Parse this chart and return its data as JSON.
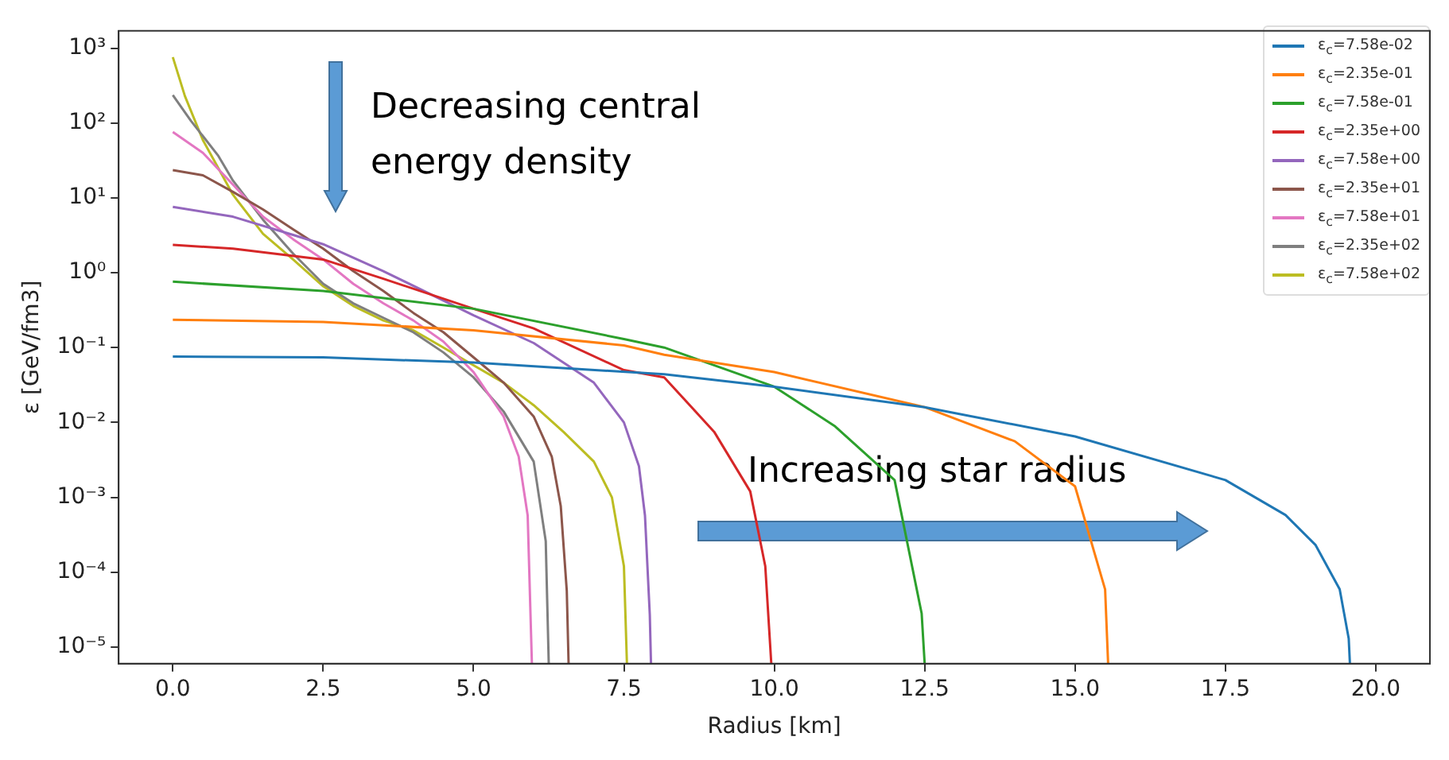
{
  "chart_data": {
    "type": "line",
    "xlabel": "Radius [km]",
    "ylabel": "ε [GeV/fm3]",
    "log": "y",
    "grid": false,
    "legend": "top right",
    "marker": "none",
    "line_style": "solid",
    "xlim": [
      -0.9,
      20.9
    ],
    "ylim": [
      6e-06,
      1700
    ],
    "xticks": [
      {
        "value": 0,
        "label": "0.0"
      },
      {
        "value": 2.5,
        "label": "2.5"
      },
      {
        "value": 5,
        "label": "5.0"
      },
      {
        "value": 7.5,
        "label": "7.5"
      },
      {
        "value": 10,
        "label": "10.0"
      },
      {
        "value": 12.5,
        "label": "12.5"
      },
      {
        "value": 15,
        "label": "15.0"
      },
      {
        "value": 17.5,
        "label": "17.5"
      },
      {
        "value": 20,
        "label": "20.0"
      }
    ],
    "yticks": [
      {
        "value": 1e-05,
        "label": "10⁻⁵"
      },
      {
        "value": 0.0001,
        "label": "10⁻⁴"
      },
      {
        "value": 0.001,
        "label": "10⁻³"
      },
      {
        "value": 0.01,
        "label": "10⁻²"
      },
      {
        "value": 0.1,
        "label": "10⁻¹"
      },
      {
        "value": 1,
        "label": "10⁰"
      },
      {
        "value": 10,
        "label": "10¹"
      },
      {
        "value": 100,
        "label": "10²"
      },
      {
        "value": 1000,
        "label": "10³"
      }
    ],
    "annotations": [
      "Decreasing central energy density",
      "Increasing star radius"
    ],
    "series": [
      {
        "name": "ε$_{c}$=7.58e-02",
        "color": "#1f77b4",
        "x": [
          0,
          2.5,
          5,
          8.17,
          10,
          12.5,
          15,
          17.5,
          18.5,
          19,
          19.4,
          19.55,
          19.57
        ],
        "values": [
          0.0758,
          0.074,
          0.063,
          0.044,
          0.03,
          0.016,
          0.0065,
          0.0017,
          0.00058,
          0.00023,
          5.9e-05,
          1.3e-05,
          6e-06
        ]
      },
      {
        "name": "ε$_{c}$=2.35e-01",
        "color": "#ff7f0e",
        "x": [
          0,
          2.5,
          5,
          7.5,
          8.17,
          10,
          12.5,
          14,
          15,
          15.5,
          15.55
        ],
        "values": [
          0.235,
          0.22,
          0.17,
          0.107,
          0.08,
          0.047,
          0.016,
          0.0056,
          0.0014,
          5.9e-05,
          6e-06
        ]
      },
      {
        "name": "ε$_{c}$=7.58e-01",
        "color": "#2ca02c",
        "x": [
          0,
          2.5,
          5,
          7.5,
          8.17,
          10,
          11,
          12,
          12.45,
          12.5
        ],
        "values": [
          0.758,
          0.57,
          0.33,
          0.13,
          0.1,
          0.03,
          0.009,
          0.0017,
          2.8e-05,
          6e-06
        ]
      },
      {
        "name": "ε$_{c}$=2.35e+00",
        "color": "#d62728",
        "x": [
          0,
          1,
          2.5,
          3.5,
          5,
          6,
          7.5,
          8.17,
          9,
          9.6,
          9.85,
          9.95
        ],
        "values": [
          2.35,
          2.1,
          1.5,
          0.83,
          0.33,
          0.18,
          0.05,
          0.04,
          0.0075,
          0.0012,
          0.00012,
          6e-06
        ]
      },
      {
        "name": "ε$_{c}$=7.58e+00",
        "color": "#9467bd",
        "x": [
          0,
          1,
          2,
          2.5,
          3.5,
          5,
          6,
          7,
          7.5,
          7.75,
          7.85,
          7.93,
          7.95
        ],
        "values": [
          7.58,
          5.6,
          3.2,
          2.4,
          1.05,
          0.27,
          0.115,
          0.034,
          0.01,
          0.0026,
          0.00057,
          2.7e-05,
          6e-06
        ]
      },
      {
        "name": "ε$_{c}$=2.35e+01",
        "color": "#8c564b",
        "x": [
          0,
          0.5,
          1,
          1.5,
          2,
          2.5,
          3,
          3.5,
          4,
          4.5,
          5,
          5.5,
          6,
          6.3,
          6.45,
          6.55,
          6.58
        ],
        "values": [
          23.5,
          20,
          12,
          7,
          3.8,
          2.1,
          1.05,
          0.57,
          0.29,
          0.16,
          0.074,
          0.034,
          0.012,
          0.0035,
          0.00076,
          5.6e-05,
          6e-06
        ]
      },
      {
        "name": "ε$_{c}$=7.58e+01",
        "color": "#e377c2",
        "x": [
          0,
          0.5,
          1,
          1.5,
          2,
          2.5,
          3,
          3.5,
          4,
          4.5,
          5,
          5.5,
          5.75,
          5.9,
          5.97
        ],
        "values": [
          75.8,
          40,
          15,
          5.6,
          2.8,
          1.5,
          0.71,
          0.39,
          0.23,
          0.12,
          0.047,
          0.012,
          0.0035,
          0.00057,
          6e-06
        ]
      },
      {
        "name": "ε$_{c}$=2.35e+02",
        "color": "#7f7f7f",
        "x": [
          0,
          0.3,
          0.75,
          1,
          1.5,
          2,
          2.5,
          3,
          3.5,
          4,
          4.5,
          5,
          5.5,
          6,
          6.2,
          6.25
        ],
        "values": [
          235,
          107,
          37,
          17,
          5.1,
          1.8,
          0.71,
          0.39,
          0.25,
          0.16,
          0.086,
          0.04,
          0.014,
          0.003,
          0.00026,
          6e-06
        ]
      },
      {
        "name": "ε$_{c}$=7.58e+02",
        "color": "#bcbd22",
        "x": [
          0,
          0.2,
          0.5,
          1,
          1.5,
          2,
          2.5,
          3,
          3.5,
          4,
          4.5,
          5,
          5.5,
          6,
          6.5,
          7,
          7.3,
          7.5,
          7.55
        ],
        "values": [
          758,
          230,
          59,
          11,
          3.3,
          1.5,
          0.66,
          0.36,
          0.23,
          0.17,
          0.1,
          0.058,
          0.034,
          0.017,
          0.0074,
          0.003,
          0.001,
          0.00012,
          6e-06
        ]
      }
    ]
  }
}
